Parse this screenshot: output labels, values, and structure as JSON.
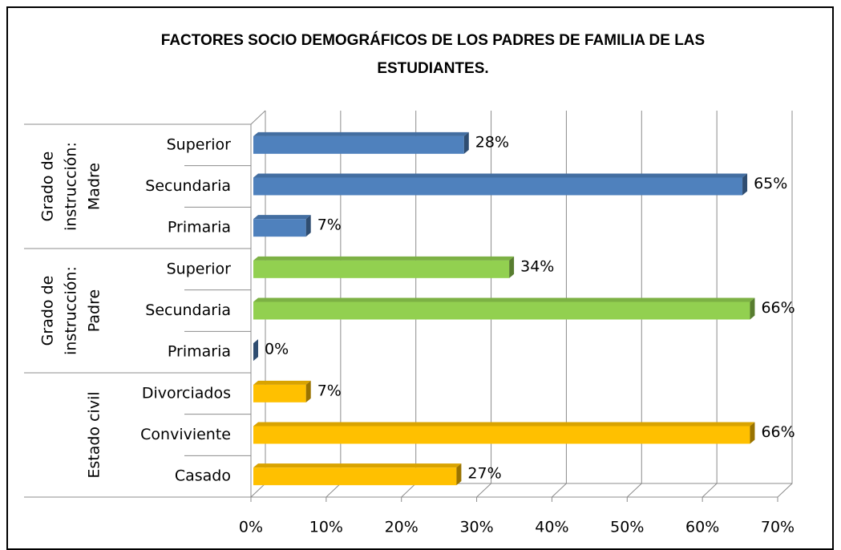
{
  "chart_data": {
    "type": "bar3d-horizontal",
    "title": [
      "FACTORES SOCIO DEMOGRÁFICOS DE LOS PADRES DE FAMILIA DE LAS",
      "ESTUDIANTES."
    ],
    "categories": [
      "Superior",
      "Secundaria",
      "Primaria",
      "Superior",
      "Secundaria",
      "Primaria",
      "Divorciados",
      "Conviviente",
      "Casado"
    ],
    "groups": [
      {
        "label": [
          "Grado de",
          "instrucción:",
          "Madre"
        ],
        "size": 3
      },
      {
        "label": [
          "Grado de",
          "instrucción:",
          "Padre"
        ],
        "size": 3
      },
      {
        "label": [
          "Estado civil"
        ],
        "size": 3
      }
    ],
    "values": [
      28,
      65,
      7,
      34,
      66,
      0,
      7,
      66,
      27
    ],
    "value_labels": [
      "28%",
      "65%",
      "7%",
      "34%",
      "66%",
      "0%",
      "7%",
      "66%",
      "27%"
    ],
    "colors": [
      "#4f81bd",
      "#4f81bd",
      "#4f81bd",
      "#92d050",
      "#92d050",
      "#4f81bd",
      "#ffc000",
      "#ffc000",
      "#ffc000"
    ],
    "xlim": [
      0,
      70
    ],
    "xticks": [
      {
        "value": 0,
        "label": "0%"
      },
      {
        "value": 10,
        "label": "10%"
      },
      {
        "value": 20,
        "label": "20%"
      },
      {
        "value": 30,
        "label": "30%"
      },
      {
        "value": 40,
        "label": "40%"
      },
      {
        "value": 50,
        "label": "50%"
      },
      {
        "value": 60,
        "label": "60%"
      },
      {
        "value": 70,
        "label": "70%"
      }
    ],
    "grid": true
  }
}
